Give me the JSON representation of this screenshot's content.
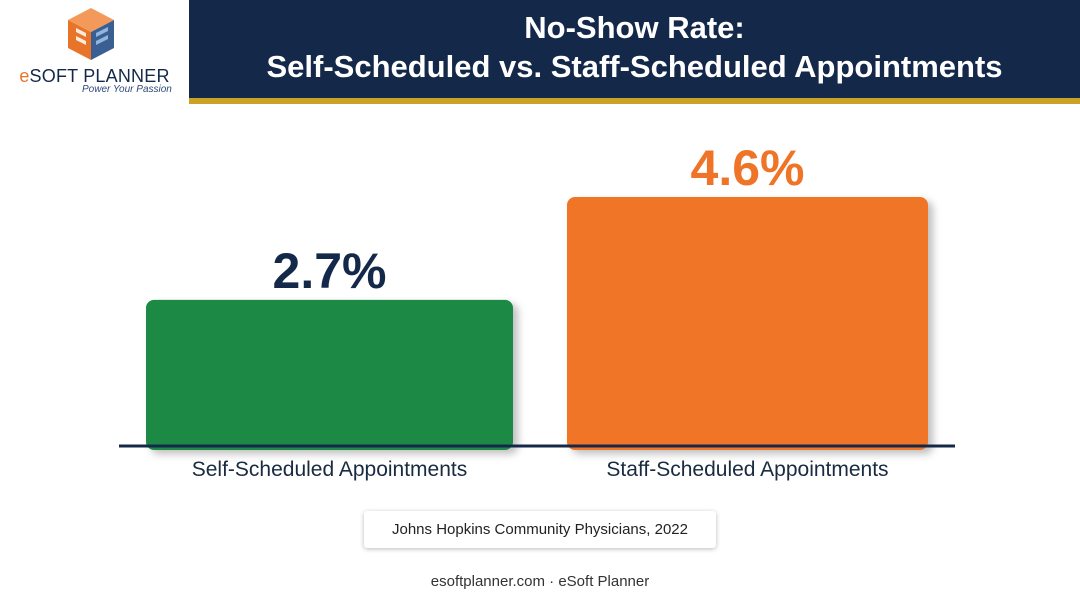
{
  "logo": {
    "brand_prefix": "e",
    "brand_rest": "SOFT PLANNER",
    "tagline": "Power Your Passion"
  },
  "title": {
    "line1": "No-Show Rate:",
    "line2": "Self-Scheduled vs. Staff-Scheduled Appointments"
  },
  "chart_data": {
    "type": "bar",
    "title": "No-Show Rate: Self-Scheduled vs. Staff-Scheduled Appointments",
    "categories": [
      "Self-Scheduled Appointments",
      "Staff-Scheduled Appointments"
    ],
    "values": [
      2.7,
      4.6
    ],
    "value_labels": [
      "2.7%",
      "4.6%"
    ],
    "bar_colors": [
      "#1e8a45",
      "#f07428"
    ],
    "label_colors": [
      "#14284a",
      "#f07428"
    ],
    "axis_color": "#14284a",
    "grid": false,
    "legend": "none",
    "ylim": [
      0,
      4.6
    ]
  },
  "source": "Johns Hopkins Community Physicians, 2022",
  "footer": "esoftplanner.com · eSoft Planner"
}
